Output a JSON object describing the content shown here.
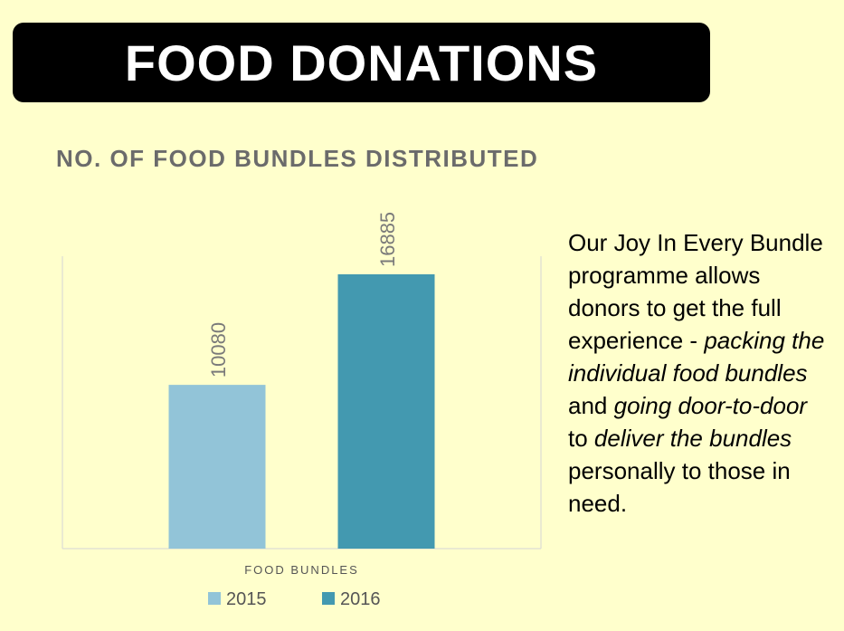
{
  "page": {
    "title": "FOOD DONATIONS"
  },
  "description": {
    "segments": [
      {
        "text": "Our Joy In Every Bundle programme allows donors to get the full experience - ",
        "italic": false
      },
      {
        "text": "packing the individual food bundles",
        "italic": true
      },
      {
        "text": " and ",
        "italic": false
      },
      {
        "text": "going door-to-door",
        "italic": true
      },
      {
        "text": " to ",
        "italic": false
      },
      {
        "text": "deliver the bundles",
        "italic": true
      },
      {
        "text": " personally to those in need.",
        "italic": false
      }
    ]
  },
  "chart_data": {
    "type": "bar",
    "title": "NO. OF FOOD BUNDLES DISTRIBUTED",
    "categories": [
      "FOOD BUNDLES"
    ],
    "xlabel": "",
    "ylabel": "",
    "ylim": [
      0,
      18000
    ],
    "grid": false,
    "legend_position": "bottom",
    "series": [
      {
        "name": "2015",
        "values": [
          10080
        ],
        "color": "#92C4D8"
      },
      {
        "name": "2016",
        "values": [
          16885
        ],
        "color": "#4399B0"
      }
    ]
  }
}
